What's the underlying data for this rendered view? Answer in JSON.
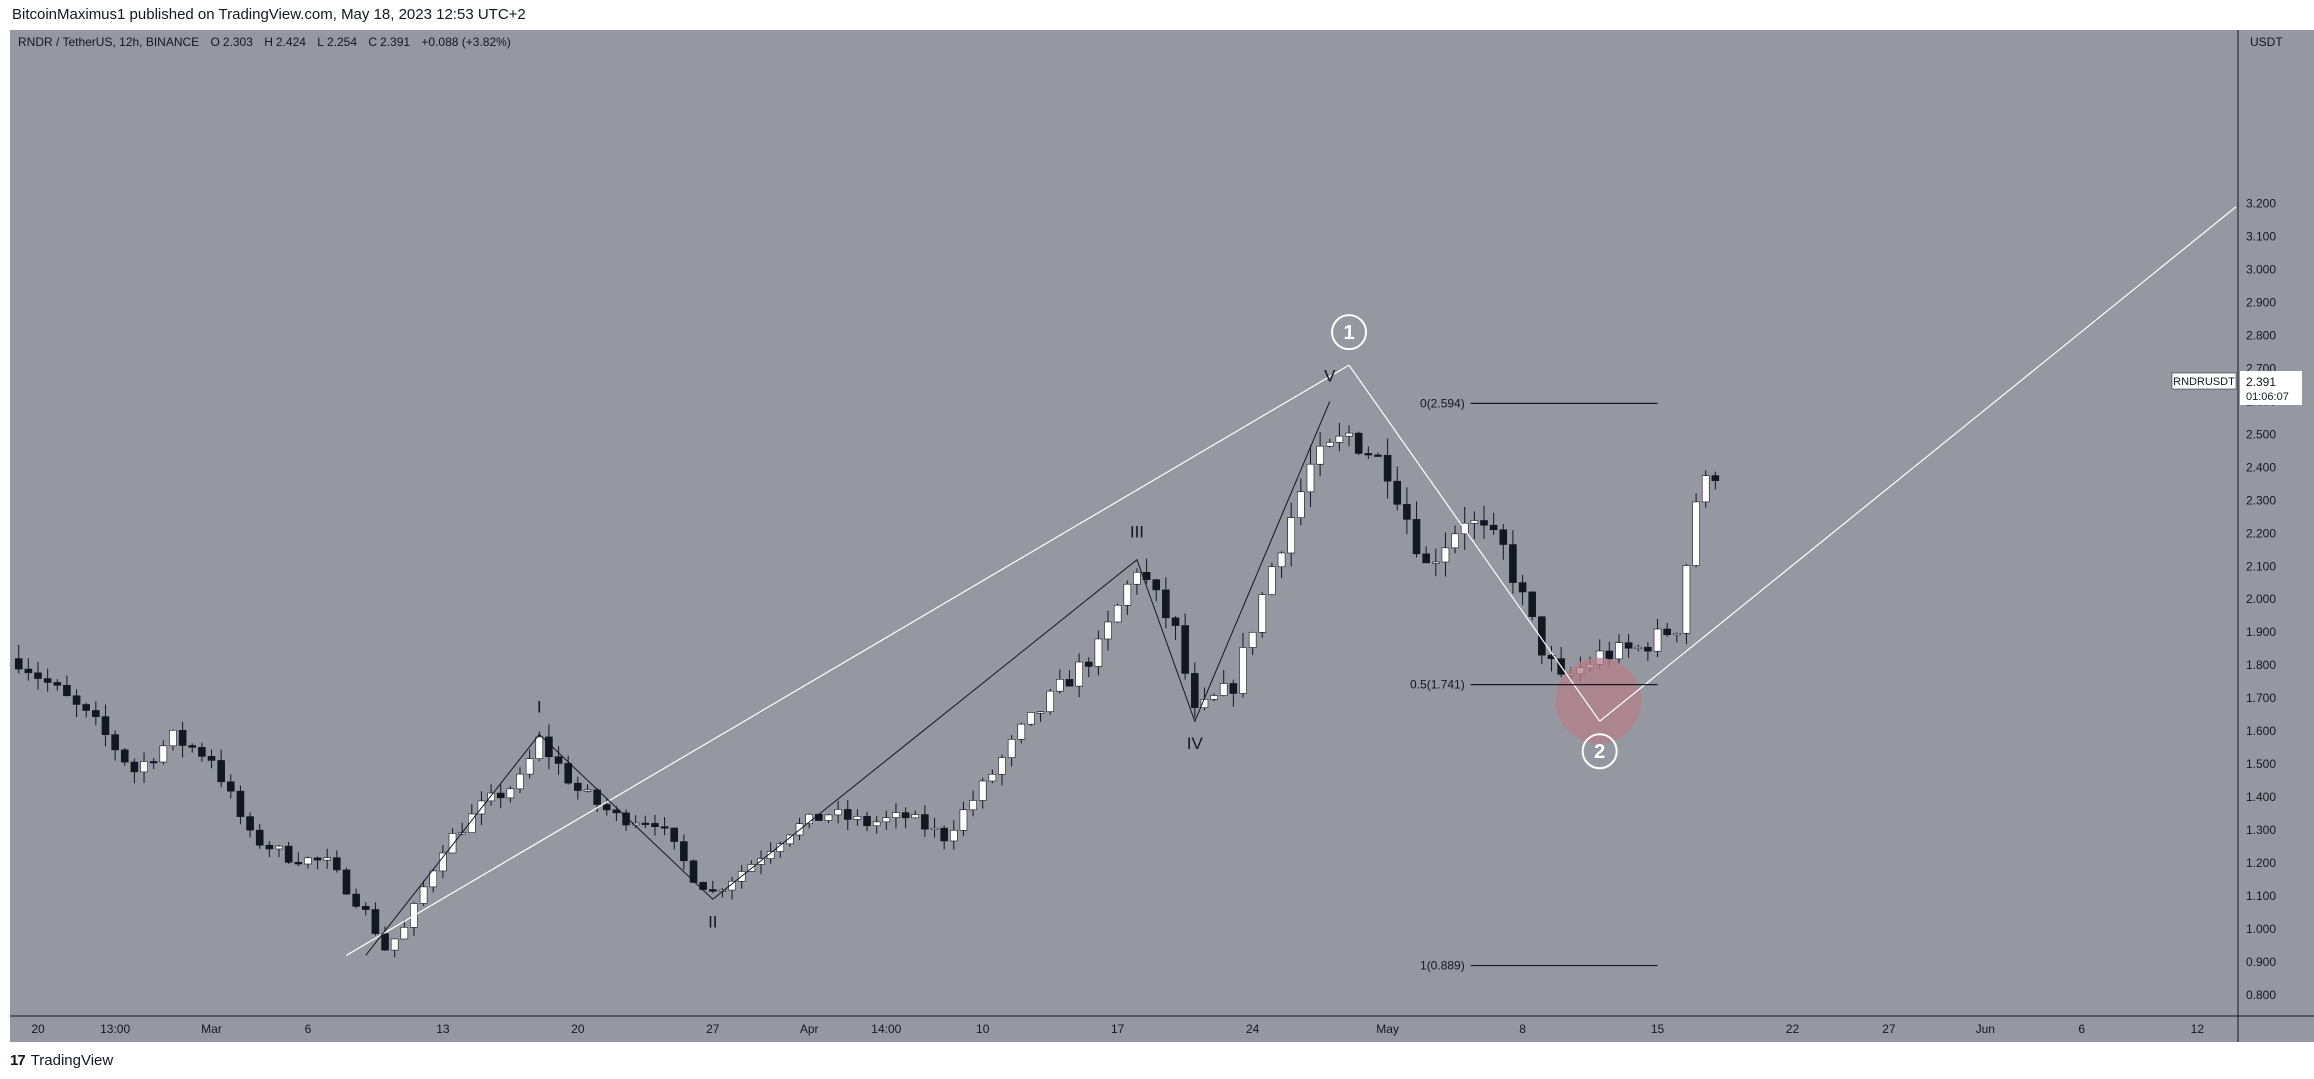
{
  "header": {
    "publisher_text": "BitcoinMaximus1 published on TradingView.com, May 18, 2023 12:53 UTC+2"
  },
  "legend": {
    "symbol_line": "RNDR / TetherUS, 12h, BINANCE",
    "ohlc": [
      {
        "key": "O",
        "value": "2.303"
      },
      {
        "key": "H",
        "value": "2.424"
      },
      {
        "key": "L",
        "value": "2.254"
      },
      {
        "key": "C",
        "value": "2.391"
      }
    ],
    "change": "+0.088 (+3.82%)"
  },
  "footer": {
    "logo_mark": "17",
    "brand": "TradingView"
  },
  "colors": {
    "plot_bg": "#9598a1",
    "bull_candle": "#ffffff",
    "bear_candle": "#131722",
    "wave_line_white": "#ffffff",
    "wave_line_dark": "#131722",
    "target_circle": "#b57f88"
  },
  "chart_data": {
    "type": "candlestick",
    "symbol": "RNDR / TetherUS",
    "interval": "12h",
    "exchange": "BINANCE",
    "y_axis_label": "USDT",
    "ylim": [
      0.75,
      3.25
    ],
    "grid": false,
    "y_ticks": [
      "0.800",
      "0.900",
      "1.000",
      "1.100",
      "1.200",
      "1.300",
      "1.400",
      "1.500",
      "1.600",
      "1.700",
      "1.800",
      "1.900",
      "2.000",
      "2.100",
      "2.200",
      "2.300",
      "2.400",
      "2.500",
      "2.600",
      "2.700",
      "2.800",
      "2.900",
      "3.000",
      "3.100",
      "3.200"
    ],
    "x_ticks": [
      {
        "label": "20",
        "date": "2023-02-20"
      },
      {
        "label": "13:00",
        "date": "2023-02-24"
      },
      {
        "label": "Mar",
        "date": "2023-03-01"
      },
      {
        "label": "6",
        "date": "2023-03-06"
      },
      {
        "label": "13",
        "date": "2023-03-13"
      },
      {
        "label": "20",
        "date": "2023-03-20"
      },
      {
        "label": "27",
        "date": "2023-03-27"
      },
      {
        "label": "Apr",
        "date": "2023-04-01"
      },
      {
        "label": "14:00",
        "date": "2023-04-05"
      },
      {
        "label": "10",
        "date": "2023-04-10"
      },
      {
        "label": "17",
        "date": "2023-04-17"
      },
      {
        "label": "24",
        "date": "2023-04-24"
      },
      {
        "label": "May",
        "date": "2023-05-01"
      },
      {
        "label": "8",
        "date": "2023-05-08"
      },
      {
        "label": "15",
        "date": "2023-05-15"
      },
      {
        "label": "22",
        "date": "2023-05-22"
      },
      {
        "label": "27",
        "date": "2023-05-27"
      },
      {
        "label": "Jun",
        "date": "2023-06-01"
      },
      {
        "label": "6",
        "date": "2023-06-06"
      },
      {
        "label": "12",
        "date": "2023-06-12"
      }
    ],
    "price_label": {
      "name": "RNDRUSDT",
      "price": "2.391",
      "countdown": "01:06:07"
    },
    "close_path": [
      {
        "date": "2023-02-19",
        "close": 1.82
      },
      {
        "date": "2023-02-21",
        "close": 1.72
      },
      {
        "date": "2023-02-23",
        "close": 1.62
      },
      {
        "date": "2023-02-25",
        "close": 1.48
      },
      {
        "date": "2023-02-27",
        "close": 1.58
      },
      {
        "date": "2023-03-01",
        "close": 1.52
      },
      {
        "date": "2023-03-03",
        "close": 1.28
      },
      {
        "date": "2023-03-05",
        "close": 1.22
      },
      {
        "date": "2023-03-07",
        "close": 1.2
      },
      {
        "date": "2023-03-09",
        "close": 1.05
      },
      {
        "date": "2023-03-10",
        "close": 0.94
      },
      {
        "date": "2023-03-11",
        "close": 1.0
      },
      {
        "date": "2023-03-13",
        "close": 1.25
      },
      {
        "date": "2023-03-15",
        "close": 1.37
      },
      {
        "date": "2023-03-17",
        "close": 1.45
      },
      {
        "date": "2023-03-18",
        "close": 1.57
      },
      {
        "date": "2023-03-20",
        "close": 1.42
      },
      {
        "date": "2023-03-22",
        "close": 1.34
      },
      {
        "date": "2023-03-24",
        "close": 1.33
      },
      {
        "date": "2023-03-26",
        "close": 1.16
      },
      {
        "date": "2023-03-27",
        "close": 1.11
      },
      {
        "date": "2023-03-29",
        "close": 1.2
      },
      {
        "date": "2023-03-31",
        "close": 1.3
      },
      {
        "date": "2023-04-02",
        "close": 1.35
      },
      {
        "date": "2023-04-04",
        "close": 1.32
      },
      {
        "date": "2023-04-06",
        "close": 1.34
      },
      {
        "date": "2023-04-08",
        "close": 1.28
      },
      {
        "date": "2023-04-10",
        "close": 1.43
      },
      {
        "date": "2023-04-12",
        "close": 1.6
      },
      {
        "date": "2023-04-14",
        "close": 1.73
      },
      {
        "date": "2023-04-16",
        "close": 1.85
      },
      {
        "date": "2023-04-18",
        "close": 2.1
      },
      {
        "date": "2023-04-20",
        "close": 1.9
      },
      {
        "date": "2023-04-21",
        "close": 1.65
      },
      {
        "date": "2023-04-23",
        "close": 1.74
      },
      {
        "date": "2023-04-25",
        "close": 2.1
      },
      {
        "date": "2023-04-27",
        "close": 2.4
      },
      {
        "date": "2023-04-29",
        "close": 2.5
      },
      {
        "date": "2023-05-01",
        "close": 2.4
      },
      {
        "date": "2023-05-03",
        "close": 2.1
      },
      {
        "date": "2023-05-05",
        "close": 2.25
      },
      {
        "date": "2023-05-07",
        "close": 2.15
      },
      {
        "date": "2023-05-09",
        "close": 1.85
      },
      {
        "date": "2023-05-10",
        "close": 1.75
      },
      {
        "date": "2023-05-12",
        "close": 1.83
      },
      {
        "date": "2023-05-14",
        "close": 1.85
      },
      {
        "date": "2023-05-16",
        "close": 1.92
      },
      {
        "date": "2023-05-17",
        "close": 2.303
      },
      {
        "date": "2023-05-18",
        "close": 2.391
      }
    ],
    "annotations": {
      "fib_levels": [
        {
          "label": "0(2.594)",
          "price": 2.594
        },
        {
          "label": "0.5(1.741)",
          "price": 1.741
        },
        {
          "label": "1(0.889)",
          "price": 0.889
        }
      ],
      "minor_waves": [
        {
          "label": "I",
          "date": "2023-03-18",
          "price": 1.59
        },
        {
          "label": "II",
          "date": "2023-03-27",
          "price": 1.09
        },
        {
          "label": "III",
          "date": "2023-04-18",
          "price": 2.12
        },
        {
          "label": "IV",
          "date": "2023-04-21",
          "price": 1.63
        },
        {
          "label": "V",
          "date": "2023-04-28",
          "price": 2.6
        }
      ],
      "major_waves": [
        {
          "label": "1",
          "date": "2023-04-29",
          "price": 2.71
        },
        {
          "label": "2",
          "date": "2023-05-12",
          "price": 1.63
        }
      ],
      "channel_line": [
        {
          "date": "2023-03-08",
          "price": 0.92
        },
        {
          "date": "2023-04-29",
          "price": 2.71
        }
      ],
      "projection_line": [
        {
          "date": "2023-05-12",
          "price": 1.63
        },
        {
          "date": "2023-06-14",
          "price": 3.19
        }
      ],
      "target_zone": {
        "date": "2023-05-11",
        "price": 1.68
      }
    }
  }
}
